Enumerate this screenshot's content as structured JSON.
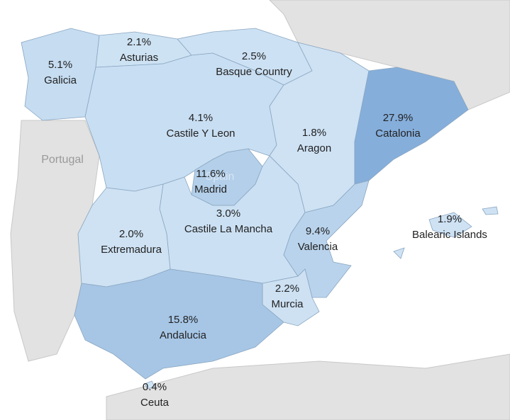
{
  "chart_data": {
    "type": "map",
    "categories": [
      "Galicia",
      "Asturias",
      "Basque Country",
      "Castile Y Leon",
      "Aragon",
      "Catalonia",
      "Madrid",
      "Castile La Mancha",
      "Extremadura",
      "Valencia",
      "Murcia",
      "Andalucia",
      "Ceuta",
      "Balearic Islands"
    ],
    "values": [
      5.1,
      2.1,
      2.5,
      4.1,
      1.8,
      27.9,
      11.6,
      3.0,
      2.0,
      9.4,
      2.2,
      15.8,
      0.4,
      1.9
    ],
    "value_labels": [
      "5.1%",
      "2.1%",
      "2.5%",
      "4.1%",
      "1.8%",
      "27.9%",
      "11.6%",
      "3.0%",
      "2.0%",
      "9.4%",
      "2.2%",
      "15.8%",
      "0.4%",
      "1.9%"
    ],
    "color_scale": [
      "#d2e5f5",
      "#85aedb"
    ],
    "countries": [
      "Portugal",
      "Spain"
    ]
  }
}
